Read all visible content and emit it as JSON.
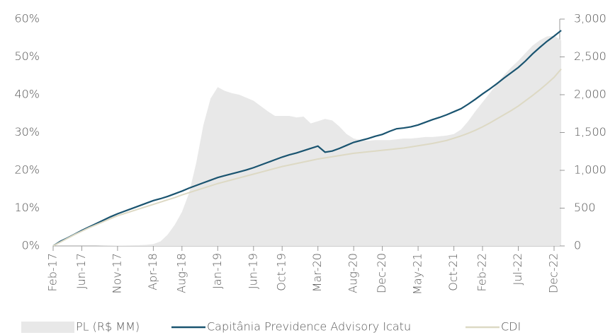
{
  "chart_data": {
    "type": "line",
    "categories": [
      "Feb-17",
      null,
      null,
      null,
      "Jun-17",
      null,
      null,
      null,
      null,
      "Nov-17",
      null,
      null,
      null,
      null,
      "Apr-18",
      null,
      null,
      null,
      "Aug-18",
      null,
      null,
      null,
      null,
      "Jan-19",
      null,
      null,
      null,
      null,
      "Jun-19",
      null,
      null,
      null,
      "Oct-19",
      null,
      null,
      null,
      null,
      "Mar-20",
      null,
      null,
      null,
      null,
      "Aug-20",
      null,
      null,
      null,
      "Dec-20",
      null,
      null,
      null,
      null,
      "May-21",
      null,
      null,
      null,
      null,
      "Oct-21",
      null,
      null,
      null,
      "Feb-22",
      null,
      null,
      null,
      null,
      "Jul-22",
      null,
      null,
      null,
      null,
      "Dec-22",
      null
    ],
    "series": [
      {
        "name": "PL (R$ MM)",
        "type": "area",
        "axis": "y2",
        "color": "#e8e8e8",
        "values": [
          0,
          0,
          0,
          0,
          0,
          0,
          0,
          2,
          3,
          5,
          6,
          8,
          10,
          15,
          25,
          60,
          150,
          280,
          450,
          700,
          1100,
          1600,
          1950,
          2100,
          2050,
          2020,
          2000,
          1960,
          1920,
          1850,
          1780,
          1720,
          1720,
          1720,
          1700,
          1710,
          1620,
          1650,
          1680,
          1660,
          1580,
          1480,
          1420,
          1400,
          1390,
          1400,
          1400,
          1400,
          1410,
          1420,
          1420,
          1430,
          1440,
          1440,
          1450,
          1460,
          1480,
          1540,
          1650,
          1780,
          1900,
          2020,
          2140,
          2260,
          2360,
          2450,
          2550,
          2650,
          2720,
          2770,
          2780,
          2720
        ]
      },
      {
        "name": "Capitânia Previdence Advisory Icatu",
        "color": "#1a5470",
        "values": [
          0,
          1.2,
          2.1,
          3.1,
          4.1,
          5.0,
          5.9,
          6.8,
          7.7,
          8.5,
          9.2,
          9.9,
          10.6,
          11.3,
          12.0,
          12.5,
          13.1,
          13.8,
          14.5,
          15.3,
          16.0,
          16.7,
          17.4,
          18.1,
          18.6,
          19.1,
          19.6,
          20.1,
          20.7,
          21.4,
          22.1,
          22.8,
          23.5,
          24.1,
          24.6,
          25.2,
          25.8,
          26.4,
          24.8,
          25.1,
          25.8,
          26.6,
          27.4,
          27.9,
          28.4,
          29.0,
          29.5,
          30.3,
          31.0,
          31.2,
          31.5,
          32.0,
          32.7,
          33.4,
          34.0,
          34.7,
          35.5,
          36.3,
          37.5,
          38.8,
          40.2,
          41.5,
          42.9,
          44.4,
          45.8,
          47.2,
          48.9,
          50.8,
          52.5,
          54.1,
          55.5,
          57.0
        ]
      },
      {
        "name": "CDI",
        "color": "#ddd9c4",
        "values": [
          0,
          1.0,
          2.0,
          3.0,
          3.9,
          4.8,
          5.6,
          6.4,
          7.2,
          8.0,
          8.6,
          9.2,
          9.8,
          10.4,
          11.0,
          11.6,
          12.2,
          12.8,
          13.5,
          14.1,
          14.7,
          15.3,
          15.9,
          16.5,
          17.0,
          17.5,
          18.0,
          18.5,
          19.0,
          19.5,
          20.0,
          20.5,
          21.0,
          21.4,
          21.8,
          22.2,
          22.6,
          23.0,
          23.3,
          23.6,
          23.9,
          24.2,
          24.5,
          24.7,
          24.9,
          25.1,
          25.3,
          25.5,
          25.7,
          25.9,
          26.2,
          26.5,
          26.8,
          27.1,
          27.5,
          27.9,
          28.5,
          29.1,
          29.8,
          30.6,
          31.5,
          32.5,
          33.6,
          34.7,
          35.8,
          37.0,
          38.4,
          39.8,
          41.3,
          42.9,
          44.6,
          46.8
        ]
      }
    ],
    "ylim": [
      0,
      60
    ],
    "yticks": [
      {
        "value": 0,
        "label": "0%"
      },
      {
        "value": 10,
        "label": "10%"
      },
      {
        "value": 20,
        "label": "20%"
      },
      {
        "value": 30,
        "label": "30%"
      },
      {
        "value": 40,
        "label": "40%"
      },
      {
        "value": 50,
        "label": "50%"
      },
      {
        "value": 60,
        "label": "60%"
      }
    ],
    "y2lim": [
      0,
      3000
    ],
    "y2ticks": [
      0,
      500,
      {
        "value": 1000,
        "label": "1,000"
      },
      {
        "value": 1500,
        "label": "1,500"
      },
      {
        "value": 2000,
        "label": "2,000"
      },
      {
        "value": 2500,
        "label": "2,500"
      },
      {
        "value": 3000,
        "label": "3,000"
      }
    ]
  }
}
